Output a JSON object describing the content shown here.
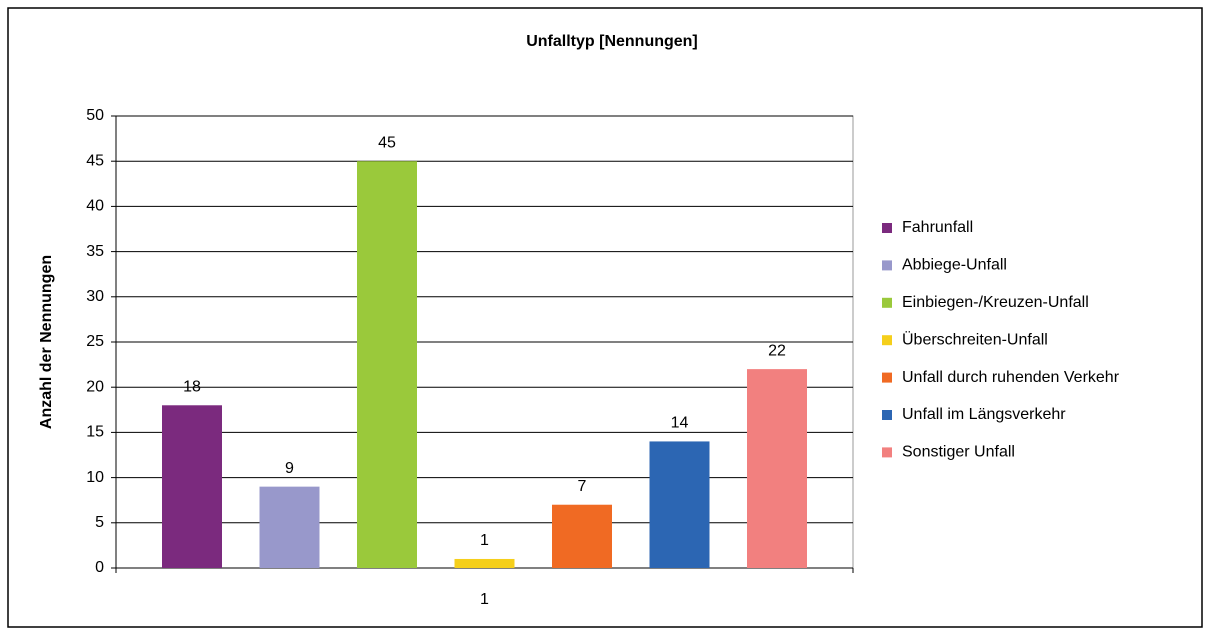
{
  "chart_data": {
    "type": "bar",
    "title": "Unfalltyp [Nennungen]",
    "y_label": "Anzahl der Nennungen",
    "categories": [
      "1"
    ],
    "series": [
      {
        "name": "Fahrunfall",
        "color": "#7b2a7e",
        "values": [
          18
        ]
      },
      {
        "name": "Abbiege-Unfall",
        "color": "#9898cb",
        "values": [
          9
        ]
      },
      {
        "name": "Einbiegen-/Kreuzen-Unfall",
        "color": "#9ac93b",
        "values": [
          45
        ]
      },
      {
        "name": "Überschreiten-Unfall",
        "color": "#f5cf1b",
        "values": [
          1
        ]
      },
      {
        "name": "Unfall durch ruhenden Verkehr",
        "color": "#f06a23",
        "values": [
          7
        ]
      },
      {
        "name": "Unfall im Längsverkehr",
        "color": "#2c66b3",
        "values": [
          14
        ]
      },
      {
        "name": "Sonstiger Unfall",
        "color": "#f2807f",
        "values": [
          22
        ]
      }
    ],
    "ylim": [
      0,
      50
    ],
    "yticks": [
      0,
      5,
      10,
      15,
      20,
      25,
      30,
      35,
      40,
      45,
      50
    ],
    "grid": true,
    "legend": "right"
  }
}
